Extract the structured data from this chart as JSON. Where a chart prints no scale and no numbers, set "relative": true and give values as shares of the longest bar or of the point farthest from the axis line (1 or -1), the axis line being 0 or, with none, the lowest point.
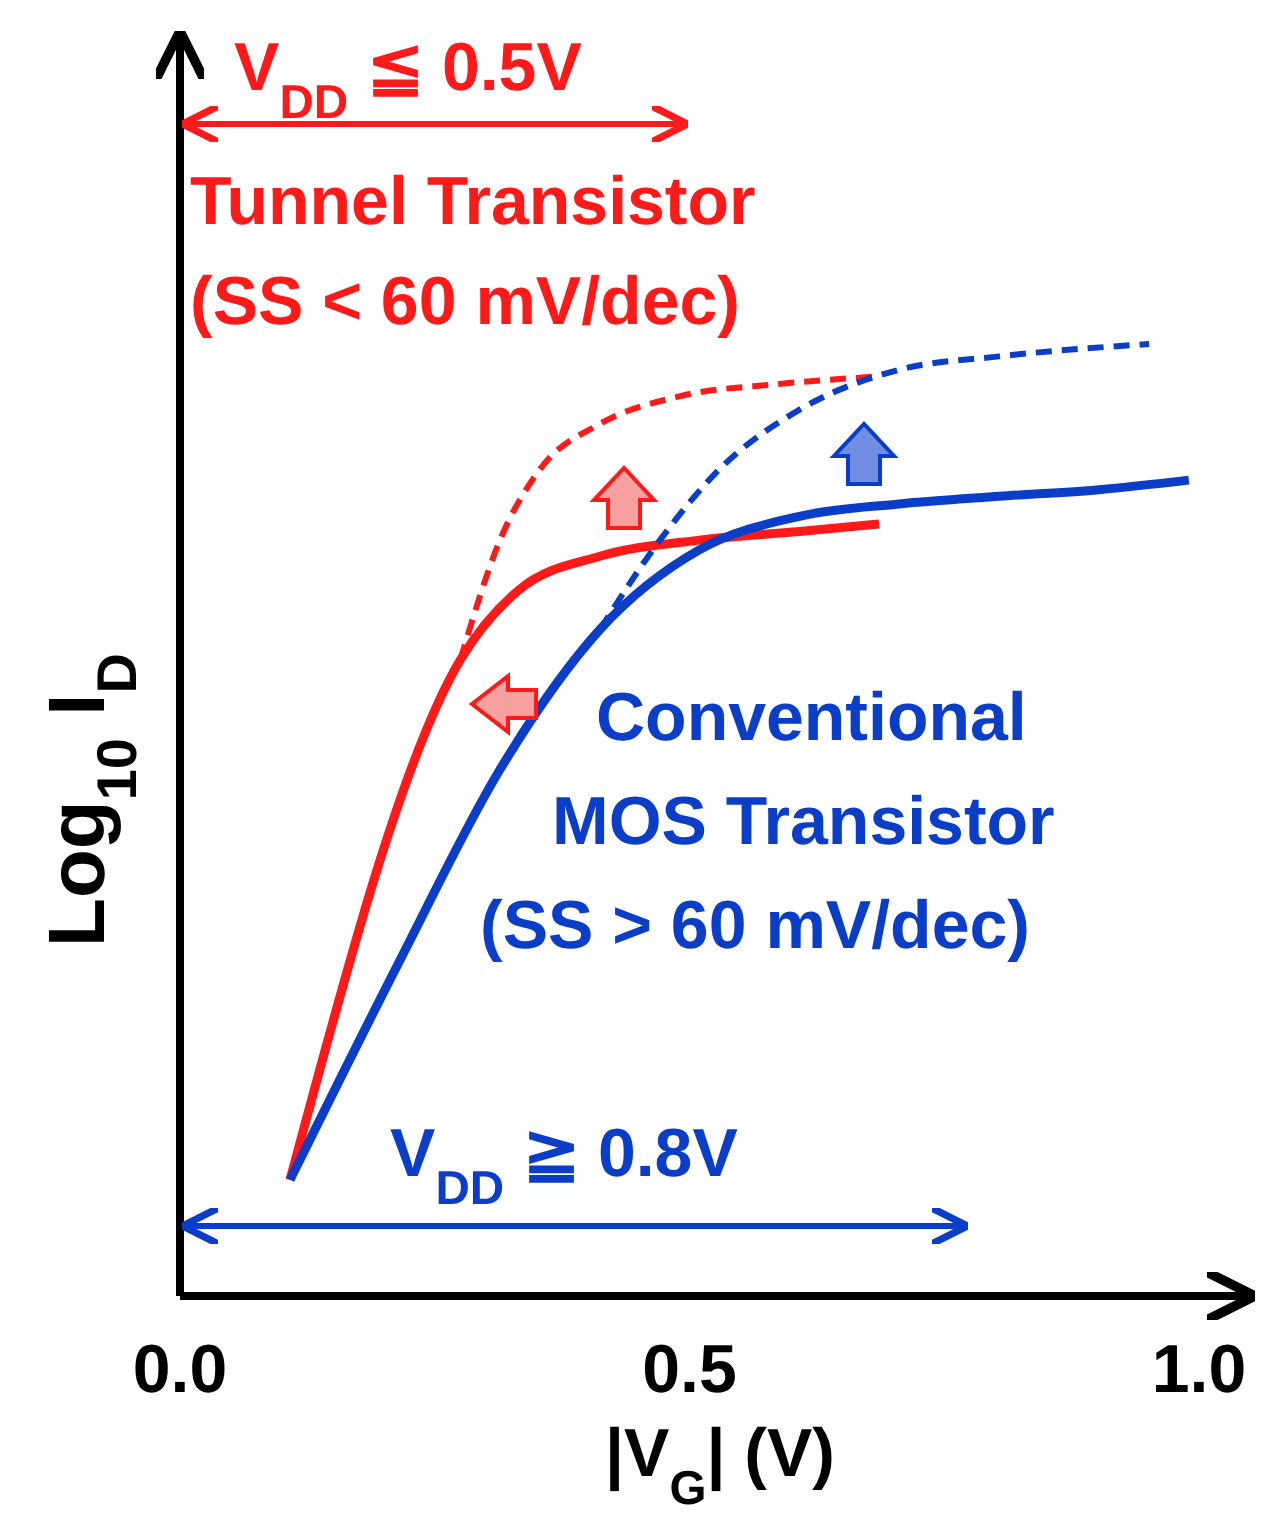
{
  "chart_data": {
    "type": "line",
    "relative": true,
    "xlabel": "|V$_{G}$| (V)",
    "ylabel": "Log$_{10}$ I$_{D}$",
    "xlim": [
      0,
      1.05
    ],
    "xticks": [
      {
        "value": 0,
        "label": "0.0"
      },
      {
        "value": 0.5,
        "label": "0.5"
      },
      {
        "value": 1,
        "label": "1.0"
      }
    ],
    "tick_labels": "x",
    "grid": false,
    "series": [
      {
        "color": "#ff1a1a",
        "line_style": "solid",
        "x": [
          0.108,
          0.275,
          0.333,
          0.412,
          0.51,
          0.608,
          0.686
        ],
        "values": [
          0.122,
          0.668,
          0.742,
          0.777,
          0.794,
          0.803,
          0.811
        ]
      },
      {
        "color": "#ff1a1a",
        "line_style": "dashed",
        "x": [
          0.275,
          0.314,
          0.353,
          0.412,
          0.49,
          0.588,
          0.686
        ],
        "values": [
          0.668,
          0.794,
          0.868,
          0.916,
          0.945,
          0.958,
          0.966
        ]
      },
      {
        "color": "#0a3ec8",
        "line_style": "solid",
        "x": [
          0.108,
          0.216,
          0.314,
          0.412,
          0.51,
          0.608,
          0.706,
          0.804,
          0.902,
          0.99
        ],
        "values": [
          0.122,
          0.353,
          0.553,
          0.7,
          0.784,
          0.819,
          0.832,
          0.84,
          0.847,
          0.857
        ]
      },
      {
        "color": "#0a3ec8",
        "line_style": "dashed",
        "x": [
          0.412,
          0.471,
          0.529,
          0.608,
          0.706,
          0.804,
          0.951
        ],
        "values": [
          0.7,
          0.794,
          0.868,
          0.931,
          0.973,
          0.987,
          1
        ]
      }
    ],
    "annotations": [
      "V$_{DD}$ ≦ 0.5V",
      "Tunnel Transistor",
      "(SS < 60 mV/dec)",
      "Conventional",
      "MOS Transistor",
      "(SS > 60 mV/dec)",
      "V$_{DD}$ ≧ 0.8V"
    ]
  }
}
